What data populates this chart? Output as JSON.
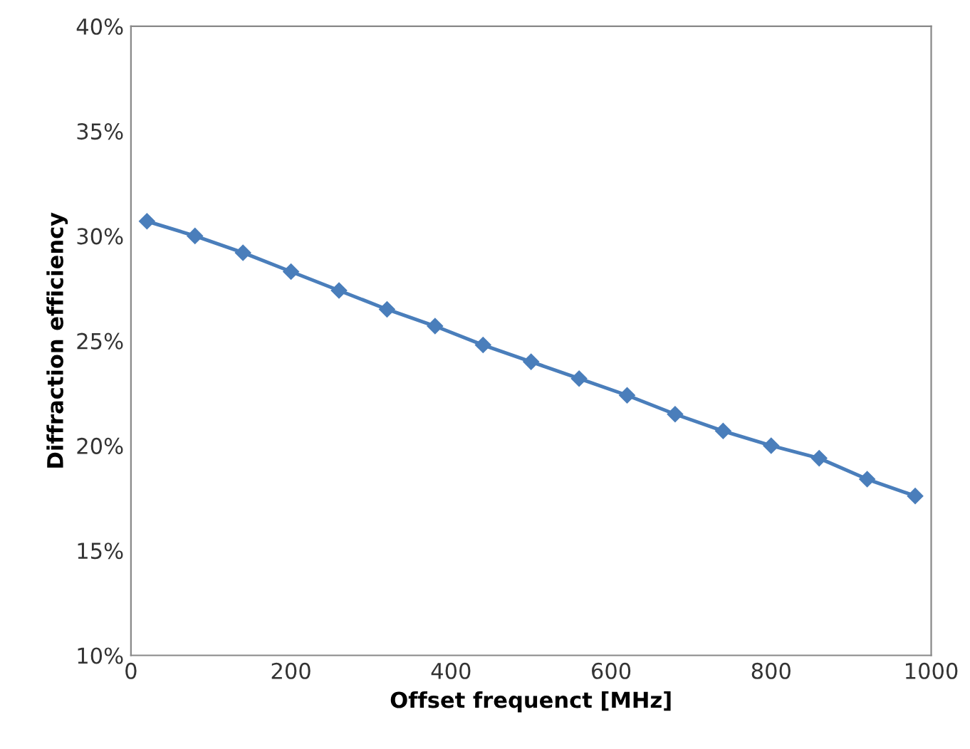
{
  "chart_data": {
    "type": "line",
    "xlabel": "Offset frequenct [MHz]",
    "ylabel": "Diffraction efficiency",
    "x": [
      20,
      80,
      140,
      200,
      260,
      320,
      380,
      440,
      500,
      560,
      620,
      680,
      740,
      800,
      860,
      920,
      980
    ],
    "series": [
      {
        "color": "#4a7ebb",
        "values": [
          30.7,
          30.0,
          29.2,
          28.3,
          27.4,
          26.5,
          25.7,
          24.8,
          24.0,
          23.2,
          22.4,
          21.5,
          20.7,
          20.0,
          19.4,
          18.4,
          17.6
        ]
      }
    ],
    "marker": "diamond",
    "line_style": "solid",
    "grid": false,
    "xlim": [
      0,
      1000
    ],
    "xticks": [
      0,
      200,
      400,
      600,
      800,
      1000
    ],
    "ylim": [
      10,
      40
    ],
    "yticks": [
      {
        "value": 10,
        "label": "10%"
      },
      {
        "value": 15,
        "label": "15%"
      },
      {
        "value": 20,
        "label": "20%"
      },
      {
        "value": 25,
        "label": "25%"
      },
      {
        "value": 30,
        "label": "30%"
      },
      {
        "value": 35,
        "label": "35%"
      },
      {
        "value": 40,
        "label": "40%"
      }
    ]
  }
}
